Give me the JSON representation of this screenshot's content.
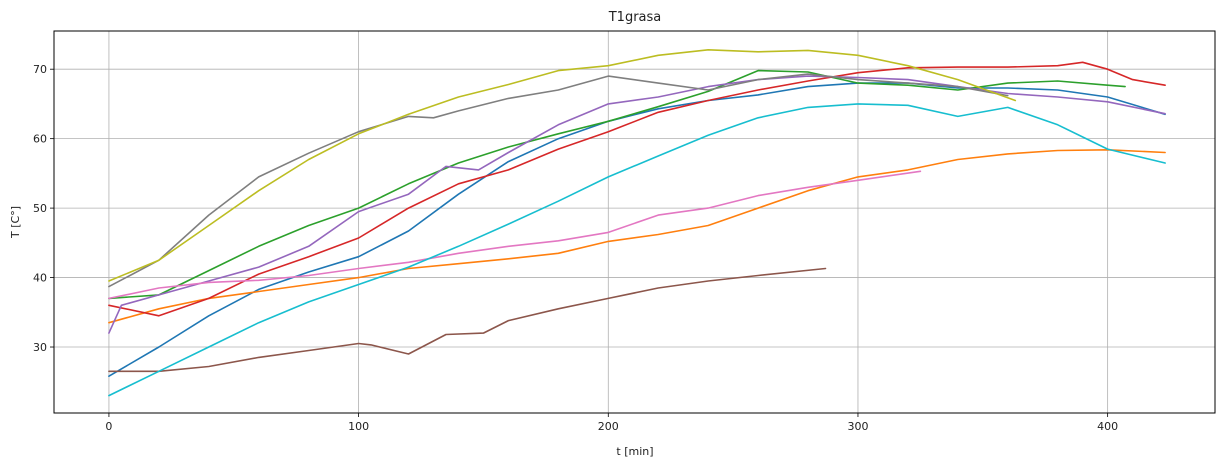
{
  "chart_data": {
    "type": "line",
    "title": "T1grasa",
    "xlabel": "t [min]",
    "ylabel": "T [C°]",
    "xlim": [
      -22,
      443
    ],
    "ylim": [
      20.5,
      75.5
    ],
    "xticks": [
      0,
      100,
      200,
      300,
      400
    ],
    "yticks": [
      30,
      40,
      50,
      60,
      70
    ],
    "grid": true,
    "legend": "none",
    "series": [
      {
        "color": "#1f77b4",
        "x": [
          0,
          20,
          40,
          60,
          80,
          100,
          120,
          140,
          160,
          180,
          200,
          220,
          240,
          260,
          280,
          300,
          320,
          340,
          360,
          380,
          400,
          423
        ],
        "y": [
          25.8,
          30,
          34.5,
          38.3,
          40.8,
          43,
          46.7,
          52,
          56.7,
          60,
          62.5,
          64.3,
          65.5,
          66.3,
          67.5,
          68,
          68,
          67.3,
          67.3,
          67,
          66,
          63.5
        ]
      },
      {
        "color": "#ff7f0e",
        "x": [
          0,
          20,
          40,
          60,
          80,
          100,
          120,
          140,
          160,
          180,
          200,
          220,
          240,
          260,
          280,
          300,
          320,
          340,
          360,
          380,
          400,
          423
        ],
        "y": [
          33.5,
          35.5,
          37,
          38,
          39,
          40,
          41.3,
          42,
          42.7,
          43.5,
          45.2,
          46.2,
          47.5,
          50,
          52.5,
          54.5,
          55.5,
          57,
          57.8,
          58.3,
          58.4,
          58
        ]
      },
      {
        "color": "#2ca02c",
        "x": [
          0,
          20,
          40,
          60,
          80,
          100,
          120,
          140,
          160,
          180,
          200,
          220,
          240,
          260,
          280,
          300,
          320,
          340,
          360,
          380,
          400,
          407
        ],
        "y": [
          37,
          37.5,
          41,
          44.5,
          47.5,
          50,
          53.5,
          56.5,
          58.8,
          60.7,
          62.5,
          64.6,
          66.8,
          69.8,
          69.6,
          68,
          67.7,
          67,
          68,
          68.3,
          67.7,
          67.5
        ]
      },
      {
        "color": "#d62728",
        "x": [
          0,
          20,
          40,
          60,
          80,
          100,
          120,
          140,
          160,
          180,
          200,
          220,
          240,
          260,
          280,
          300,
          320,
          340,
          360,
          380,
          390,
          400,
          410,
          423
        ],
        "y": [
          36,
          34.5,
          37,
          40.5,
          43,
          45.7,
          50,
          53.5,
          55.5,
          58.5,
          61,
          63.8,
          65.5,
          67,
          68.3,
          69.5,
          70.2,
          70.3,
          70.3,
          70.5,
          71,
          70,
          68.5,
          67.7
        ]
      },
      {
        "color": "#9467bd",
        "x": [
          0,
          5,
          20,
          40,
          60,
          80,
          100,
          120,
          135,
          148,
          160,
          180,
          200,
          220,
          240,
          260,
          280,
          300,
          320,
          340,
          360,
          380,
          400,
          423
        ],
        "y": [
          32,
          36,
          37.5,
          39.5,
          41.5,
          44.5,
          49.5,
          52,
          56,
          55.5,
          58,
          62,
          65,
          66,
          67.5,
          68.5,
          69,
          68.8,
          68.5,
          67.5,
          66.5,
          66,
          65.3,
          63.6
        ]
      },
      {
        "color": "#8c564b",
        "x": [
          0,
          20,
          40,
          60,
          80,
          100,
          105,
          120,
          135,
          150,
          160,
          180,
          200,
          220,
          240,
          260,
          287
        ],
        "y": [
          26.5,
          26.5,
          27.2,
          28.5,
          29.5,
          30.5,
          30.3,
          29,
          31.8,
          32,
          33.8,
          35.5,
          37,
          38.5,
          39.5,
          40.3,
          41.3
        ]
      },
      {
        "color": "#e377c2",
        "x": [
          0,
          20,
          40,
          60,
          80,
          100,
          120,
          140,
          160,
          180,
          200,
          220,
          240,
          260,
          280,
          300,
          325
        ],
        "y": [
          37,
          38.5,
          39.3,
          39.6,
          40.3,
          41.3,
          42.2,
          43.5,
          44.5,
          45.3,
          46.5,
          49,
          50,
          51.8,
          53,
          54,
          55.3
        ]
      },
      {
        "color": "#7f7f7f",
        "x": [
          0,
          20,
          40,
          60,
          80,
          100,
          120,
          130,
          140,
          160,
          180,
          200,
          220,
          240,
          260,
          280,
          300,
          320,
          340,
          360
        ],
        "y": [
          38.7,
          42.5,
          49,
          54.5,
          57.9,
          61,
          63.2,
          63,
          64,
          65.8,
          67,
          69,
          68,
          67,
          68.5,
          69.3,
          68.5,
          68,
          67.5,
          66.2
        ]
      },
      {
        "color": "#bcbd22",
        "x": [
          0,
          20,
          40,
          60,
          80,
          100,
          120,
          140,
          160,
          180,
          200,
          220,
          240,
          260,
          280,
          300,
          320,
          340,
          363
        ],
        "y": [
          39.5,
          42.5,
          47.5,
          52.5,
          57,
          60.7,
          63.5,
          66,
          67.8,
          69.8,
          70.5,
          72,
          72.8,
          72.5,
          72.7,
          72,
          70.5,
          68.5,
          65.5
        ]
      },
      {
        "color": "#17becf",
        "x": [
          0,
          20,
          40,
          60,
          80,
          100,
          120,
          140,
          160,
          180,
          200,
          220,
          240,
          260,
          280,
          300,
          320,
          340,
          360,
          380,
          400,
          423
        ],
        "y": [
          23,
          26.5,
          30,
          33.5,
          36.5,
          39,
          41.5,
          44.5,
          47.7,
          51,
          54.5,
          57.5,
          60.5,
          63,
          64.5,
          65,
          64.8,
          63.2,
          64.5,
          62,
          58.5,
          56.5
        ]
      }
    ]
  }
}
